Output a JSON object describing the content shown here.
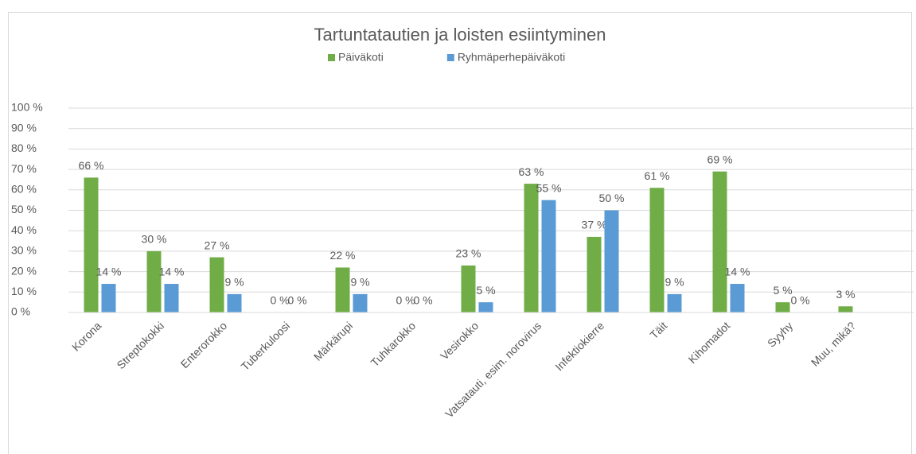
{
  "chart_data": {
    "type": "bar",
    "title": "Tartuntatautien ja loisten esiintyminen",
    "categories": [
      "Korona",
      "Streptokokki",
      "Enterorokko",
      "Tuberkuloosi",
      "Märkärupi",
      "Tuhkarokko",
      "Vesirokko",
      "Vatsatauti, esim. norovirus",
      "Infektiokierre",
      "Täit",
      "Kihomadot",
      "Syyhy",
      "Muu, mikä?"
    ],
    "series": [
      {
        "name": "Päiväkoti",
        "color": "#70ad47",
        "values": [
          66,
          30,
          27,
          0,
          22,
          0,
          23,
          63,
          37,
          61,
          69,
          5,
          3
        ],
        "value_labels": [
          "66 %",
          "30 %",
          "27 %",
          "0 %",
          "22 %",
          "0 %",
          "23 %",
          "63 %",
          "37 %",
          "61 %",
          "69 %",
          "5 %",
          "3 %"
        ]
      },
      {
        "name": "Ryhmäperhepäiväkoti",
        "color": "#5b9bd5",
        "values": [
          14,
          14,
          9,
          0,
          9,
          0,
          5,
          55,
          50,
          9,
          14,
          0,
          null
        ],
        "value_labels": [
          "14 %",
          "14 %",
          "9 %",
          "0 %",
          "9 %",
          "0 %",
          "5 %",
          "55 %",
          "50 %",
          "9 %",
          "14 %",
          "0 %",
          null
        ]
      }
    ],
    "ylim": [
      0,
      100
    ],
    "yticks": [
      {
        "value": 0,
        "label": "0 %"
      },
      {
        "value": 10,
        "label": "10 %"
      },
      {
        "value": 20,
        "label": "20 %"
      },
      {
        "value": 30,
        "label": "30 %"
      },
      {
        "value": 40,
        "label": "40 %"
      },
      {
        "value": 50,
        "label": "50 %"
      },
      {
        "value": 60,
        "label": "60 %"
      },
      {
        "value": 70,
        "label": "70 %"
      },
      {
        "value": 80,
        "label": "80 %"
      },
      {
        "value": 90,
        "label": "90 %"
      },
      {
        "value": 100,
        "label": "100 %"
      }
    ],
    "grid": true,
    "legend": "top"
  }
}
